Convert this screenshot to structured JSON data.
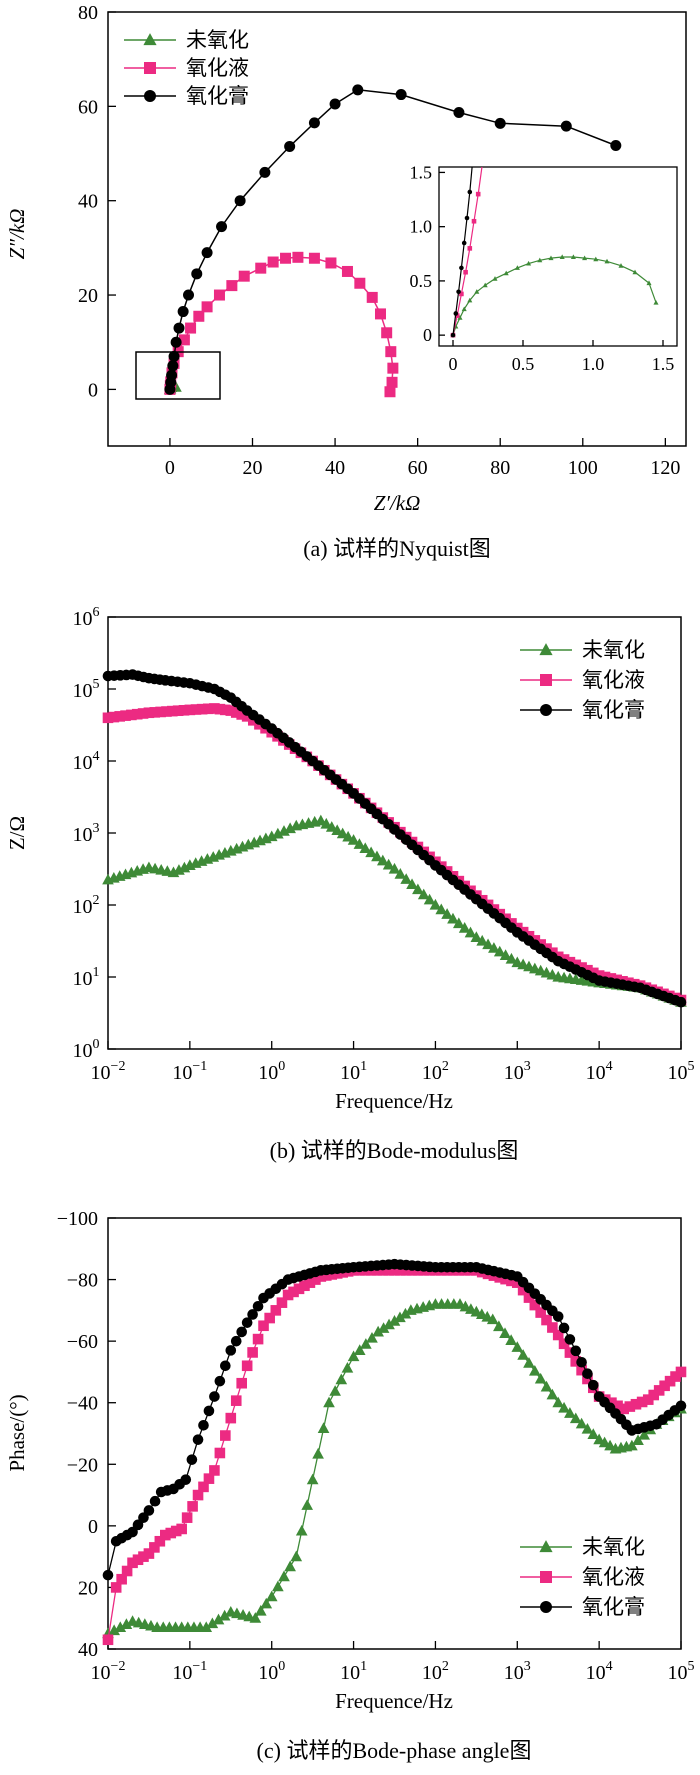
{
  "series_names": [
    "未氧化",
    "氧化液",
    "氧化膏"
  ],
  "colors": {
    "unoxidized": "#3e8a37",
    "solution": "#ec2a82",
    "paste": "#000000"
  },
  "marker_shapes": [
    "triangle",
    "square",
    "circle"
  ],
  "chart_data": [
    {
      "id": "nyquist",
      "type": "scatter",
      "caption": "(a) 试样的Nyquist图",
      "xlabel": "Z′/kΩ",
      "ylabel": "Z″/kΩ",
      "xlim": [
        -15,
        125
      ],
      "ylim": [
        -12,
        80
      ],
      "xticks": [
        0,
        20,
        40,
        60,
        80,
        100,
        120
      ],
      "yticks": [
        0,
        20,
        40,
        60,
        80
      ],
      "legend_position": "top-left",
      "series": [
        {
          "name": "未氧化",
          "x": [
            0,
            0.1,
            0.3,
            0.5,
            0.8,
            1.1,
            1.4
          ],
          "y": [
            0,
            0.2,
            0.45,
            0.6,
            0.72,
            0.7,
            0.5
          ]
        },
        {
          "name": "氧化液",
          "x": [
            0,
            0.1,
            0.2,
            0.5,
            1,
            2,
            3.5,
            5,
            7,
            9,
            12,
            15,
            18,
            22,
            25,
            28,
            31,
            35,
            39,
            43,
            46,
            49,
            51,
            52.5,
            53.5,
            54,
            53.8,
            53.3
          ],
          "y": [
            0,
            0.8,
            1.6,
            3.5,
            5.5,
            8,
            10.5,
            13,
            15.5,
            17.5,
            20,
            22,
            24,
            25.7,
            27,
            27.8,
            28,
            27.8,
            26.8,
            25,
            22.5,
            19.5,
            16,
            12,
            8,
            4.5,
            1.5,
            -0.5
          ]
        },
        {
          "name": "氧化膏",
          "x": [
            0,
            0.2,
            0.4,
            0.7,
            1,
            1.5,
            2.2,
            3.2,
            4.5,
            6.5,
            9,
            12.5,
            17,
            23,
            29,
            35,
            40,
            45.5,
            56,
            70,
            80,
            96,
            108
          ],
          "y": [
            0,
            1.5,
            3,
            5,
            7,
            10,
            13,
            16.5,
            20,
            24.5,
            29,
            34.5,
            40,
            46,
            51.5,
            56.5,
            60.5,
            63.5,
            62.5,
            58.7,
            56.4,
            55.8,
            51.7
          ]
        }
      ],
      "inset": {
        "xlim": [
          -0.1,
          1.6
        ],
        "ylim": [
          -0.1,
          1.55
        ],
        "xticks": [
          0,
          0.5,
          1.0,
          1.5
        ],
        "yticks": [
          0,
          0.5,
          1.0,
          1.5
        ],
        "series": [
          {
            "name": "未氧化",
            "x": [
              0,
              0.02,
              0.05,
              0.08,
              0.12,
              0.17,
              0.23,
              0.3,
              0.38,
              0.46,
              0.54,
              0.62,
              0.7,
              0.78,
              0.86,
              0.94,
              1.02,
              1.1,
              1.2,
              1.3,
              1.4,
              1.45
            ],
            "y": [
              0,
              0.08,
              0.16,
              0.24,
              0.32,
              0.4,
              0.46,
              0.52,
              0.57,
              0.62,
              0.66,
              0.69,
              0.71,
              0.72,
              0.72,
              0.71,
              0.7,
              0.68,
              0.64,
              0.58,
              0.48,
              0.3
            ]
          },
          {
            "name": "氧化液",
            "x": [
              0,
              0.03,
              0.06,
              0.09,
              0.12,
              0.15,
              0.18,
              0.21
            ],
            "y": [
              0,
              0.18,
              0.38,
              0.58,
              0.8,
              1.05,
              1.3,
              1.58
            ]
          },
          {
            "name": "氧化膏",
            "x": [
              0,
              0.02,
              0.04,
              0.06,
              0.08,
              0.1,
              0.12,
              0.14
            ],
            "y": [
              0,
              0.2,
              0.4,
              0.62,
              0.85,
              1.08,
              1.32,
              1.6
            ]
          }
        ]
      }
    },
    {
      "id": "bode-modulus",
      "type": "line",
      "caption": "(b) 试样的Bode-modulus图",
      "xlabel": "Frequence/Hz",
      "ylabel": "Z/Ω",
      "xscale": "log",
      "yscale": "log",
      "xlim_exp": [
        -2,
        5
      ],
      "ylim_exp": [
        0,
        6
      ],
      "xtick_exponents": [
        "-2",
        "-1",
        "0",
        "1",
        "2",
        "3",
        "4",
        "5"
      ],
      "ytick_exponents": [
        "0",
        "1",
        "2",
        "3",
        "4",
        "5",
        "6"
      ],
      "tick_base": "10",
      "legend_position": "top-right",
      "series": [
        {
          "name": "未氧化",
          "log_f": [
            -2,
            -1.5,
            -1.2,
            -1,
            -0.5,
            0,
            0.3,
            0.6,
            1,
            1.5,
            2,
            2.5,
            3,
            3.5,
            4,
            4.5,
            5
          ],
          "log_z": [
            2.35,
            2.52,
            2.45,
            2.55,
            2.75,
            2.95,
            3.1,
            3.17,
            2.9,
            2.5,
            2.0,
            1.55,
            1.2,
            1.0,
            0.92,
            0.85,
            0.65
          ]
        },
        {
          "name": "氧化液",
          "log_f": [
            -2,
            -1.5,
            -1,
            -0.7,
            -0.5,
            -0.3,
            0,
            0.5,
            1,
            1.5,
            2,
            2.5,
            3,
            3.5,
            4,
            4.5,
            5
          ],
          "log_z": [
            4.6,
            4.67,
            4.71,
            4.73,
            4.7,
            4.62,
            4.4,
            4.0,
            3.55,
            3.08,
            2.6,
            2.13,
            1.68,
            1.28,
            1.02,
            0.88,
            0.68
          ]
        },
        {
          "name": "氧化膏",
          "log_f": [
            -2,
            -1.7,
            -1.5,
            -1.3,
            -1,
            -0.7,
            -0.5,
            -0.3,
            0,
            0.5,
            1,
            1.5,
            2,
            2.5,
            3,
            3.5,
            4,
            4.5,
            5
          ],
          "log_z": [
            5.18,
            5.2,
            5.15,
            5.12,
            5.08,
            5.0,
            4.88,
            4.7,
            4.45,
            4.0,
            3.55,
            3.05,
            2.55,
            2.08,
            1.62,
            1.22,
            0.95,
            0.85,
            0.65
          ]
        }
      ]
    },
    {
      "id": "bode-phase",
      "type": "line",
      "caption": "(c) 试样的Bode-phase angle图",
      "xlabel": "Frequence/Hz",
      "ylabel": "Phase/(°)",
      "xscale": "log",
      "xlim_exp": [
        -2,
        5
      ],
      "ylim": [
        40,
        -100
      ],
      "yticks": [
        "-100",
        "-80",
        "-60",
        "-40",
        "-20",
        "0",
        "20",
        "40"
      ],
      "xtick_exponents": [
        "-2",
        "-1",
        "0",
        "1",
        "2",
        "3",
        "4",
        "5"
      ],
      "tick_base": "10",
      "legend_position": "bottom-right",
      "series": [
        {
          "name": "未氧化",
          "log_f": [
            -2,
            -1.7,
            -1.4,
            -1.1,
            -0.8,
            -0.5,
            -0.2,
            0,
            0.3,
            0.5,
            0.7,
            1,
            1.3,
            1.7,
            2,
            2.3,
            2.7,
            3,
            3.5,
            4,
            4.2,
            4.4,
            4.7,
            5
          ],
          "phase": [
            35,
            31,
            33,
            33,
            33,
            28,
            30,
            23,
            10,
            -15,
            -40,
            -55,
            -63,
            -70,
            -72,
            -72,
            -67,
            -58,
            -40,
            -28,
            -25,
            -26,
            -33,
            -38
          ]
        },
        {
          "name": "氧化液",
          "log_f": [
            -2,
            -1.9,
            -1.7,
            -1.5,
            -1.3,
            -1.1,
            -0.9,
            -0.7,
            -0.5,
            -0.3,
            -0.1,
            0.2,
            0.6,
            1,
            1.5,
            2,
            2.5,
            3,
            3.5,
            4,
            4.3,
            4.6,
            5
          ],
          "phase": [
            37,
            20,
            12,
            9,
            3,
            1,
            -10,
            -18,
            -35,
            -52,
            -65,
            -75,
            -81,
            -83,
            -83,
            -83,
            -83,
            -79,
            -62,
            -42,
            -38,
            -41,
            -50
          ]
        },
        {
          "name": "氧化膏",
          "log_f": [
            -2,
            -1.9,
            -1.7,
            -1.5,
            -1.35,
            -1.2,
            -1.05,
            -0.9,
            -0.7,
            -0.5,
            -0.3,
            -0.1,
            0.2,
            0.6,
            1,
            1.5,
            2,
            2.5,
            3,
            3.5,
            4,
            4.4,
            4.7,
            5
          ],
          "phase": [
            16,
            5,
            2,
            -5,
            -11,
            -12,
            -15,
            -28,
            -42,
            -57,
            -66,
            -74,
            -80,
            -83,
            -84,
            -85,
            -84,
            -84,
            -81,
            -68,
            -42,
            -31,
            -33,
            -39
          ]
        }
      ]
    }
  ]
}
